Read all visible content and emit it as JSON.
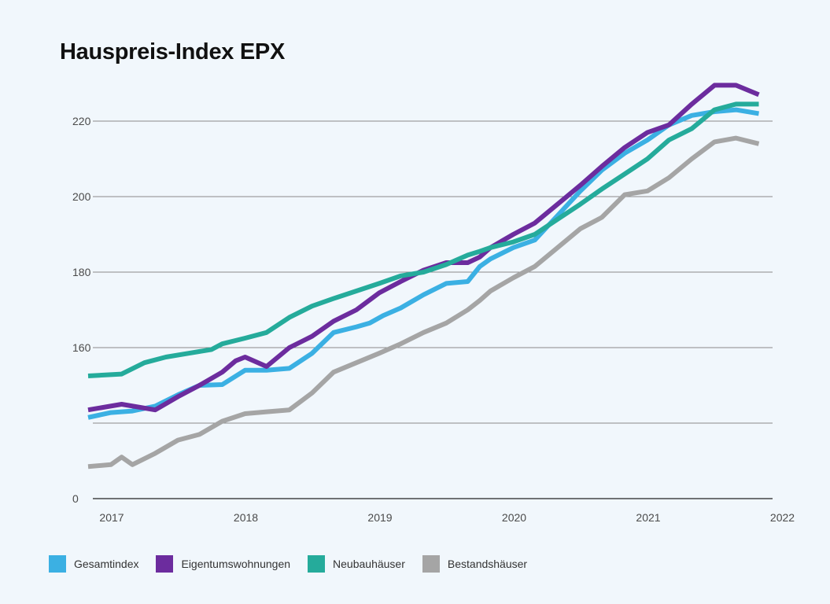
{
  "chart_data": {
    "type": "line",
    "title": "Hauspreis-Index EPX",
    "xlabel": "",
    "ylabel": "",
    "y_tick_labels": [
      "0",
      "160",
      "180",
      "200",
      "220"
    ],
    "x_tick_labels": [
      "2017",
      "2018",
      "2019",
      "2020",
      "2021",
      "2022"
    ],
    "x_range": [
      2017,
      2022.1
    ],
    "y_axis_note": "broken axis: baseline labeled 0, gridlines at 140 (unlabeled), 160, 180, 200, 220",
    "grid": true,
    "legend_position": "bottom",
    "series": [
      {
        "name": "Gesamtindex",
        "color": "#3bb0e3",
        "x": [
          2017.0,
          2017.17,
          2017.33,
          2017.5,
          2017.67,
          2017.83,
          2018.0,
          2018.17,
          2018.33,
          2018.5,
          2018.67,
          2018.83,
          2019.0,
          2019.1,
          2019.2,
          2019.33,
          2019.5,
          2019.67,
          2019.83,
          2019.92,
          2020.0,
          2020.17,
          2020.33,
          2020.5,
          2020.67,
          2020.83,
          2021.0,
          2021.17,
          2021.33,
          2021.5,
          2021.67,
          2021.83,
          2022.0
        ],
        "values": [
          141.5,
          142.8,
          143.2,
          144.5,
          147.5,
          150,
          150.2,
          154,
          154,
          154.5,
          158.5,
          164,
          165.5,
          166.5,
          168.5,
          170.5,
          174,
          177,
          177.5,
          181.5,
          183.5,
          186.5,
          188.5,
          195,
          201.5,
          207,
          211.5,
          215,
          219,
          221.5,
          222.5,
          223,
          222
        ]
      },
      {
        "name": "Eigentumswohnungen",
        "color": "#6c2c9e",
        "x": [
          2017.0,
          2017.25,
          2017.5,
          2017.67,
          2017.83,
          2018.0,
          2018.1,
          2018.17,
          2018.33,
          2018.5,
          2018.67,
          2018.83,
          2019.0,
          2019.17,
          2019.33,
          2019.5,
          2019.67,
          2019.83,
          2019.92,
          2020.0,
          2020.17,
          2020.33,
          2020.5,
          2020.67,
          2020.83,
          2021.0,
          2021.17,
          2021.33,
          2021.5,
          2021.67,
          2021.83,
          2022.0
        ],
        "values": [
          143.5,
          145,
          143.5,
          147,
          150,
          153.5,
          156.5,
          157.5,
          155,
          160,
          163,
          167,
          170,
          174.5,
          177.5,
          180.5,
          182.5,
          182.5,
          184,
          186.5,
          190,
          193,
          198,
          203,
          208,
          213,
          217,
          219,
          224.5,
          229.5,
          229.5,
          227
        ]
      },
      {
        "name": "Neubauhäuser",
        "color": "#25ab9b",
        "x": [
          2017.0,
          2017.25,
          2017.42,
          2017.58,
          2017.75,
          2017.92,
          2018.0,
          2018.17,
          2018.33,
          2018.5,
          2018.67,
          2018.83,
          2019.0,
          2019.17,
          2019.33,
          2019.5,
          2019.67,
          2019.83,
          2019.92,
          2020.0,
          2020.17,
          2020.33,
          2020.5,
          2020.67,
          2020.83,
          2021.0,
          2021.17,
          2021.33,
          2021.5,
          2021.67,
          2021.83,
          2022.0
        ],
        "values": [
          152.5,
          153,
          156,
          157.5,
          158.5,
          159.5,
          161,
          162.5,
          164,
          168,
          171,
          173,
          175,
          177,
          179,
          180,
          182,
          184.5,
          185.5,
          186.5,
          188,
          190,
          194,
          198,
          202,
          206,
          210,
          215,
          218,
          223,
          224.5,
          224.5
        ]
      },
      {
        "name": "Bestandshäuser",
        "color": "#a5a5a5",
        "x": [
          2017.0,
          2017.17,
          2017.25,
          2017.33,
          2017.5,
          2017.67,
          2017.83,
          2018.0,
          2018.17,
          2018.33,
          2018.5,
          2018.67,
          2018.83,
          2019.0,
          2019.17,
          2019.33,
          2019.5,
          2019.67,
          2019.83,
          2019.92,
          2020.0,
          2020.17,
          2020.33,
          2020.5,
          2020.67,
          2020.83,
          2021.0,
          2021.17,
          2021.33,
          2021.5,
          2021.67,
          2021.83,
          2022.0
        ],
        "values": [
          128.5,
          129,
          131,
          129,
          132,
          135.5,
          137,
          140.5,
          142.5,
          143,
          143.5,
          148,
          153.5,
          156,
          158.5,
          161,
          164,
          166.5,
          170,
          172.5,
          175,
          178.5,
          181.5,
          186.5,
          191.5,
          194.5,
          200.5,
          201.5,
          205,
          210,
          214.5,
          215.5,
          214
        ]
      }
    ]
  }
}
